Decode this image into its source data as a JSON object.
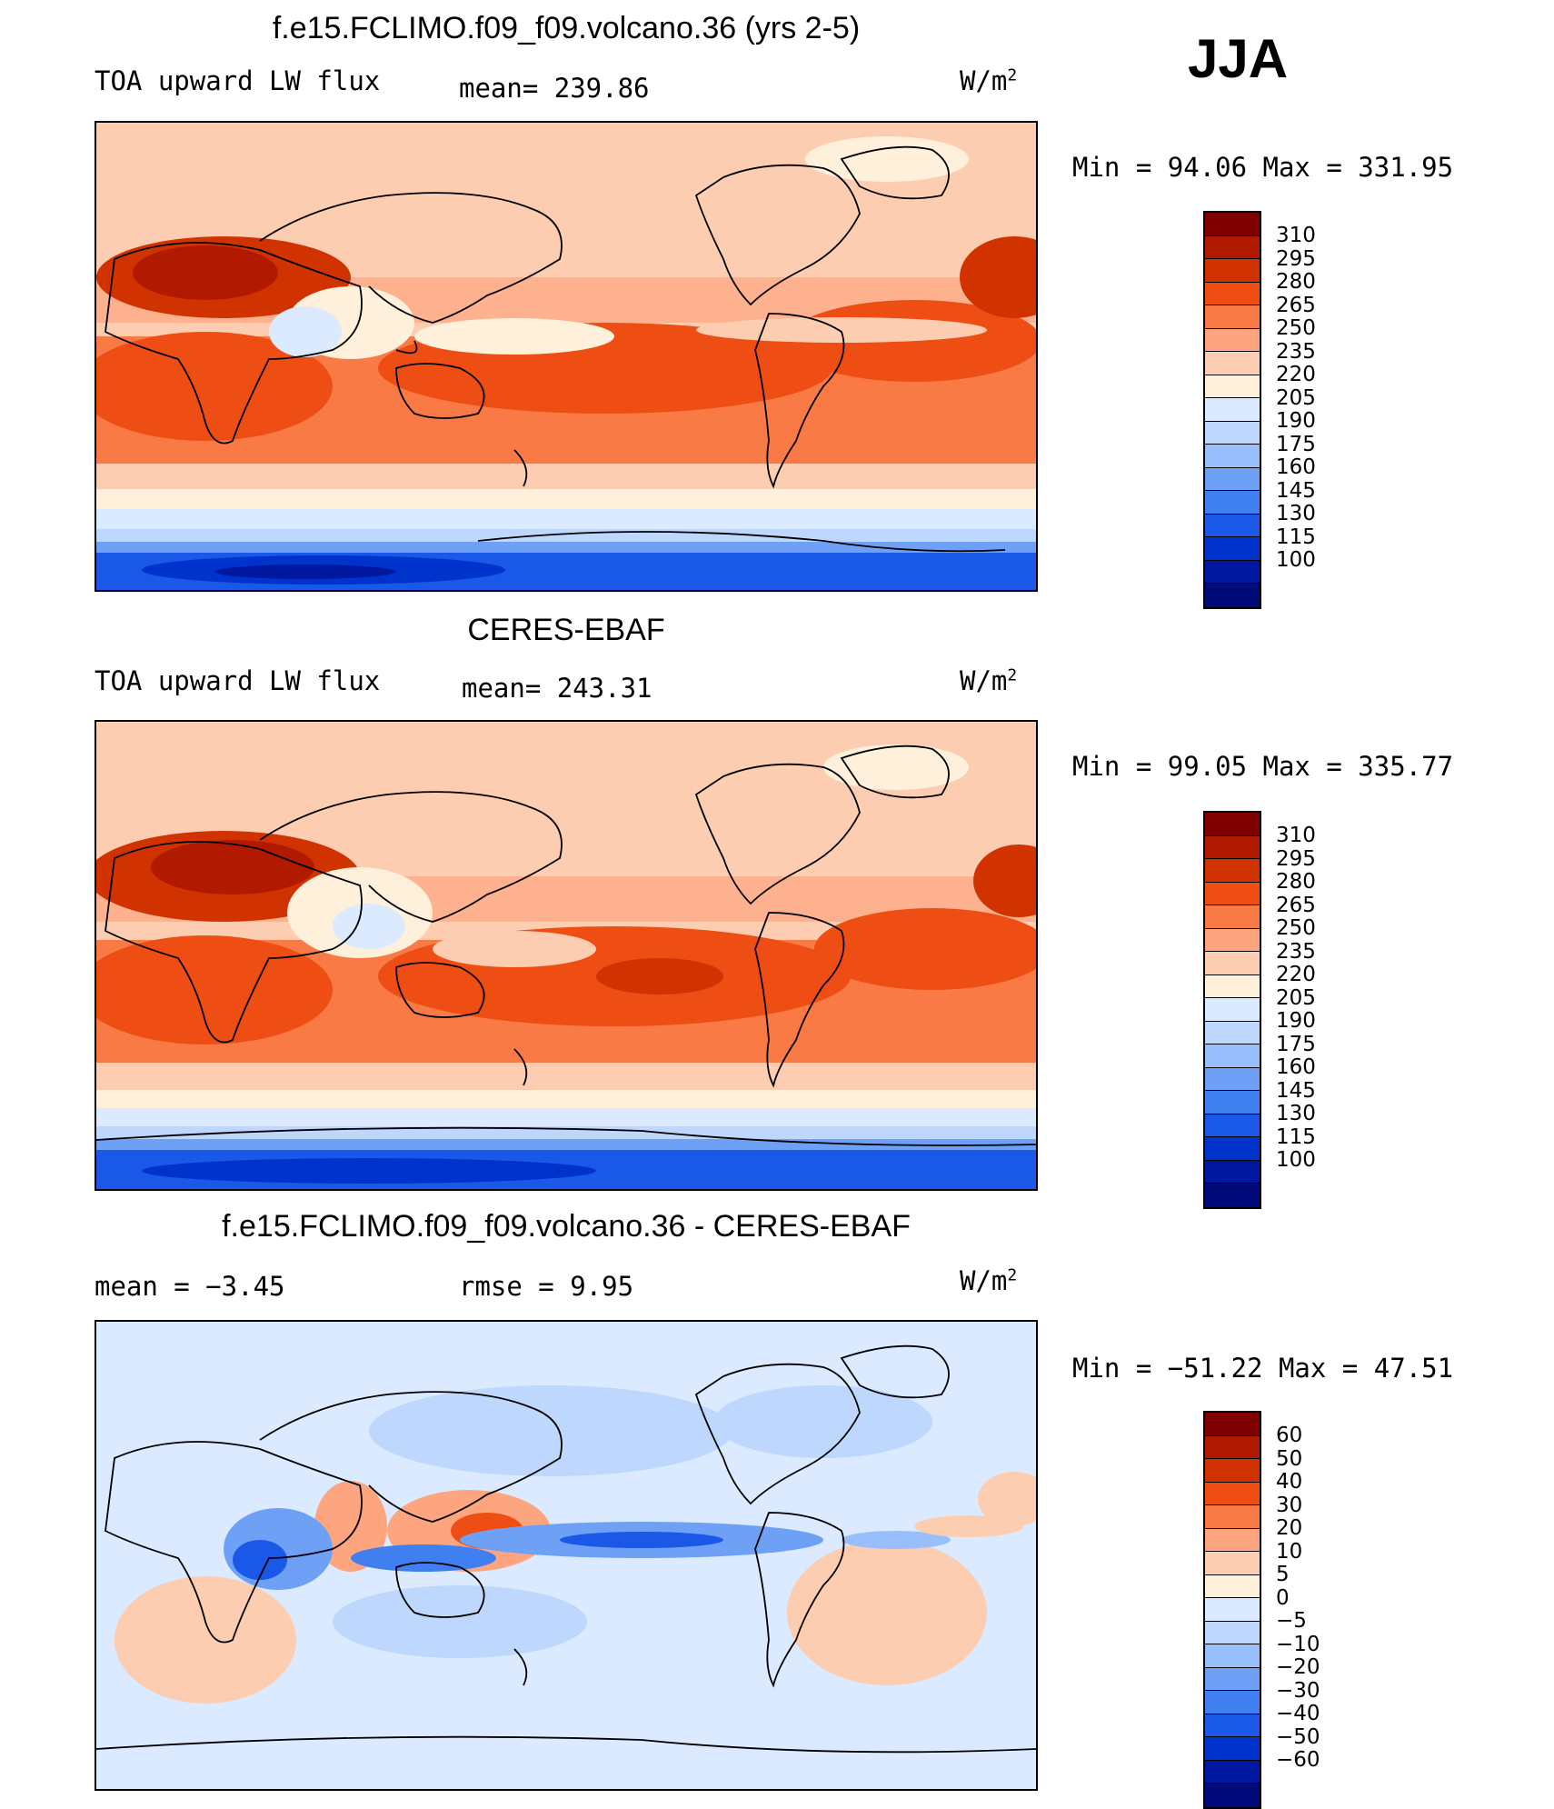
{
  "season": "JJA",
  "panels": [
    {
      "title": "f.e15.FCLIMO.f09_f09.volcano.36 (yrs 2-5)",
      "left_label": "TOA upward LW flux",
      "center_label": "mean=  239.86",
      "units": "W/m",
      "units_exp": "2",
      "minmax": "Min  =   94.06  Max  =  331.95",
      "colorbar": {
        "colors": [
          "#7f0000",
          "#b21a00",
          "#d13300",
          "#ee4d14",
          "#f97a45",
          "#fca57f",
          "#fdcdb1",
          "#fff0dc",
          "#dbeaff",
          "#bdd7fd",
          "#98bffb",
          "#6ea1f5",
          "#3f7ff0",
          "#1a58e8",
          "#0033cc",
          "#0017a0",
          "#000a78"
        ],
        "labels": [
          "310",
          "295",
          "280",
          "265",
          "250",
          "235",
          "220",
          "205",
          "190",
          "175",
          "160",
          "145",
          "130",
          "115",
          "100"
        ]
      }
    },
    {
      "title": "CERES-EBAF",
      "left_label": "TOA upward LW flux",
      "center_label": "mean=  243.31",
      "units": "W/m",
      "units_exp": "2",
      "minmax": "Min  =   99.05  Max  =  335.77",
      "colorbar": {
        "colors": [
          "#7f0000",
          "#b21a00",
          "#d13300",
          "#ee4d14",
          "#f97a45",
          "#fca57f",
          "#fdcdb1",
          "#fff0dc",
          "#dbeaff",
          "#bdd7fd",
          "#98bffb",
          "#6ea1f5",
          "#3f7ff0",
          "#1a58e8",
          "#0033cc",
          "#0017a0",
          "#000a78"
        ],
        "labels": [
          "310",
          "295",
          "280",
          "265",
          "250",
          "235",
          "220",
          "205",
          "190",
          "175",
          "160",
          "145",
          "130",
          "115",
          "100"
        ]
      }
    },
    {
      "title": "f.e15.FCLIMO.f09_f09.volcano.36 - CERES-EBAF",
      "left_label": "mean  =   −3.45",
      "center_label": "rmse  =     9.95",
      "units": "W/m",
      "units_exp": "2",
      "minmax": "Min  = −51.22  Max  =   47.51",
      "colorbar": {
        "colors": [
          "#7f0000",
          "#b21a00",
          "#d13300",
          "#ee4d14",
          "#f97a45",
          "#fca57f",
          "#fdcdb1",
          "#fff0dc",
          "#dbeaff",
          "#bdd7fd",
          "#98bffb",
          "#6ea1f5",
          "#3f7ff0",
          "#1a58e8",
          "#0033cc",
          "#0017a0",
          "#000a78"
        ],
        "labels": [
          "60",
          "50",
          "40",
          "30",
          "20",
          "10",
          "5",
          "0",
          "−5",
          "−10",
          "−20",
          "−30",
          "−40",
          "−50",
          "−60"
        ]
      }
    }
  ]
}
